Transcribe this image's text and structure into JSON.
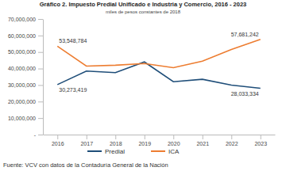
{
  "chart_data": {
    "type": "line",
    "title": "Gráfico 2. Impuesto Predial Unificado e Industria y Comercio, 2016 - 2023",
    "subtitle": "miles de pesos constantes de 2018",
    "annotations": [
      "Fuente: VCV con datos de la Contaduría General de la Nación"
    ],
    "categories": [
      "2016",
      "2017",
      "2018",
      "2019",
      "2020",
      "2021",
      "2022",
      "2023"
    ],
    "series": [
      {
        "name": "Predial",
        "color": "#1f4e79",
        "values": [
          30273419,
          38500000,
          37500000,
          44000000,
          32000000,
          33500000,
          30000000,
          28033334
        ],
        "value_labels": [
          "30,273,419",
          null,
          null,
          null,
          null,
          null,
          null,
          "28,033,334"
        ]
      },
      {
        "name": "ICA",
        "color": "#ed7d31",
        "values": [
          53548784,
          41500000,
          42000000,
          43000000,
          40500000,
          44500000,
          51500000,
          57681242
        ],
        "value_labels": [
          "53,548,784",
          null,
          null,
          null,
          null,
          null,
          null,
          "57,681,242"
        ]
      }
    ],
    "ylim": [
      0,
      70000000
    ],
    "yticks": [
      {
        "value": 0,
        "label": "-"
      },
      {
        "value": 10000000,
        "label": "10,000,000"
      },
      {
        "value": 20000000,
        "label": "20,000,000"
      },
      {
        "value": 30000000,
        "label": "30,000,000"
      },
      {
        "value": 40000000,
        "label": "40,000,000"
      },
      {
        "value": 50000000,
        "label": "50,000,000"
      },
      {
        "value": 60000000,
        "label": "60,000,000"
      },
      {
        "value": 70000000,
        "label": "70,000,000"
      }
    ],
    "grid": false,
    "legend": "bottom",
    "data_labels": true
  }
}
